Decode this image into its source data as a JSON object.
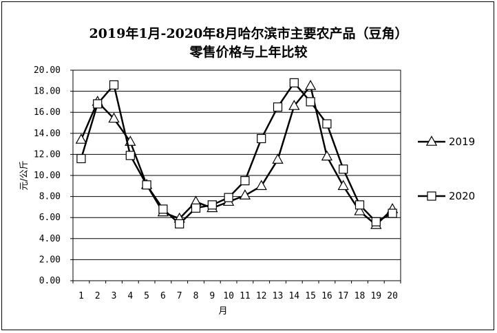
{
  "chart_data": {
    "type": "line",
    "title_line1": "2019年1月-2020年8月哈尔滨市主要农产品（豆角）",
    "title_line2": "零售价格与上年比较",
    "xlabel": "月",
    "ylabel": "元/公斤",
    "categories": [
      "1",
      "2",
      "3",
      "4",
      "5",
      "6",
      "7",
      "8",
      "9",
      "10",
      "11",
      "12",
      "13",
      "14",
      "15",
      "16",
      "17",
      "18",
      "19",
      "20"
    ],
    "ylim": [
      0,
      20
    ],
    "ytick_labels": [
      "0.00",
      "2.00",
      "4.00",
      "6.00",
      "8.00",
      "10.00",
      "12.00",
      "14.00",
      "16.00",
      "18.00",
      "20.00"
    ],
    "grid": true,
    "legend_position": "right",
    "series": [
      {
        "name": "2019",
        "marker": "triangle",
        "color": "#000000",
        "values": [
          13.4,
          17.0,
          15.4,
          13.2,
          9.1,
          6.5,
          5.9,
          7.5,
          6.9,
          7.5,
          8.1,
          9.0,
          11.5,
          16.6,
          18.5,
          11.8,
          9.0,
          6.6,
          5.3,
          6.8
        ]
      },
      {
        "name": "2020",
        "marker": "square",
        "color": "#000000",
        "values": [
          11.6,
          16.8,
          18.6,
          11.9,
          9.1,
          6.8,
          5.4,
          6.9,
          7.2,
          7.9,
          9.5,
          13.5,
          16.5,
          18.8,
          17.0,
          14.9,
          10.6,
          7.2,
          5.6,
          6.4
        ]
      }
    ]
  }
}
